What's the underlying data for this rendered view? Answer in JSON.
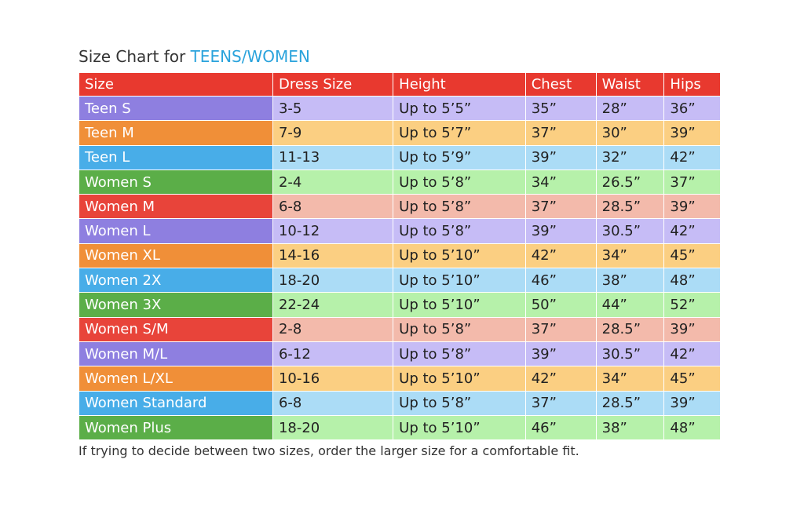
{
  "title": {
    "prefix": "Size Chart for",
    "highlight": "TEENS/WOMEN"
  },
  "table": {
    "header": [
      "Size",
      "Dress Size",
      "Height",
      "Chest",
      "Waist",
      "Hips"
    ],
    "rows": [
      [
        "Teen S",
        "3-5",
        "Up to 5’5”",
        "35”",
        "28”",
        "36”"
      ],
      [
        "Teen M",
        "7-9",
        "Up to 5’7”",
        "37”",
        "30”",
        "39”"
      ],
      [
        "Teen L",
        "11-13",
        "Up to 5’9”",
        "39”",
        "32”",
        "42”"
      ],
      [
        "Women S",
        "2-4",
        "Up to 5’8”",
        "34”",
        "26.5”",
        "37”"
      ],
      [
        "Women M",
        "6-8",
        "Up to 5’8”",
        "37”",
        "28.5”",
        "39”"
      ],
      [
        "Women L",
        "10-12",
        "Up to 5’8”",
        "39”",
        "30.5”",
        "42”"
      ],
      [
        "Women XL",
        "14-16",
        "Up to 5’10”",
        "42”",
        "34”",
        "45”"
      ],
      [
        "Women 2X",
        "18-20",
        "Up to 5’10”",
        "46”",
        "38”",
        "48”"
      ],
      [
        "Women 3X",
        "22-24",
        "Up to 5’10”",
        "50”",
        "44”",
        "52”"
      ],
      [
        "Women S/M",
        "2-8",
        "Up to 5’8”",
        "37”",
        "28.5”",
        "39”"
      ],
      [
        "Women M/L",
        "6-12",
        "Up to 5’8”",
        "39”",
        "30.5”",
        "42”"
      ],
      [
        "Women L/XL",
        "10-16",
        "Up to 5’10”",
        "42”",
        "34”",
        "45”"
      ],
      [
        "Women Standard",
        "6-8",
        "Up to 5’8”",
        "37”",
        "28.5”",
        "39”"
      ],
      [
        "Women Plus",
        "18-20",
        "Up to 5’10”",
        "46”",
        "38”",
        "48”"
      ]
    ]
  },
  "footnote": "If trying to decide between two sizes, order the larger size for a comfortable fit."
}
